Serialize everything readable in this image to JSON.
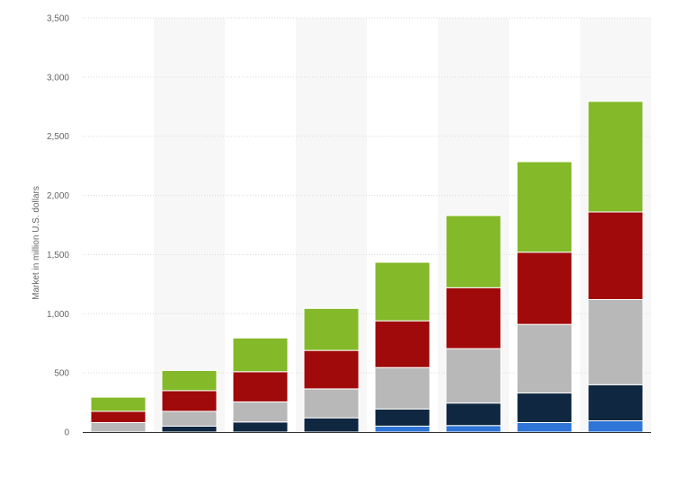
{
  "chart_data": {
    "type": "bar",
    "stacked": true,
    "categories": [
      "",
      "",
      "",
      "",
      "",
      "",
      "",
      ""
    ],
    "series": [
      {
        "color": "#2f75d8",
        "values": [
          0,
          0,
          0,
          0,
          50,
          55,
          80,
          95
        ]
      },
      {
        "color": "#0f2740",
        "values": [
          0,
          50,
          85,
          120,
          145,
          190,
          250,
          305
        ]
      },
      {
        "color": "#b8b8b8",
        "values": [
          80,
          125,
          170,
          245,
          350,
          460,
          580,
          720
        ]
      },
      {
        "color": "#a00a0a",
        "values": [
          95,
          175,
          255,
          325,
          395,
          515,
          610,
          740
        ]
      },
      {
        "color": "#84b92a",
        "values": [
          120,
          170,
          285,
          355,
          495,
          610,
          765,
          935
        ]
      }
    ],
    "xlabel": "",
    "ylabel": "Market in million U.S. dollars",
    "ylim": [
      0,
      3500
    ],
    "yticks": [
      0,
      500,
      1000,
      1500,
      2000,
      2500,
      3000,
      3500
    ],
    "ytick_labels": [
      "0",
      "500",
      "1,000",
      "1,500",
      "2,000",
      "2,500",
      "3,000",
      "3,500"
    ],
    "grid": true,
    "legend": "none"
  }
}
